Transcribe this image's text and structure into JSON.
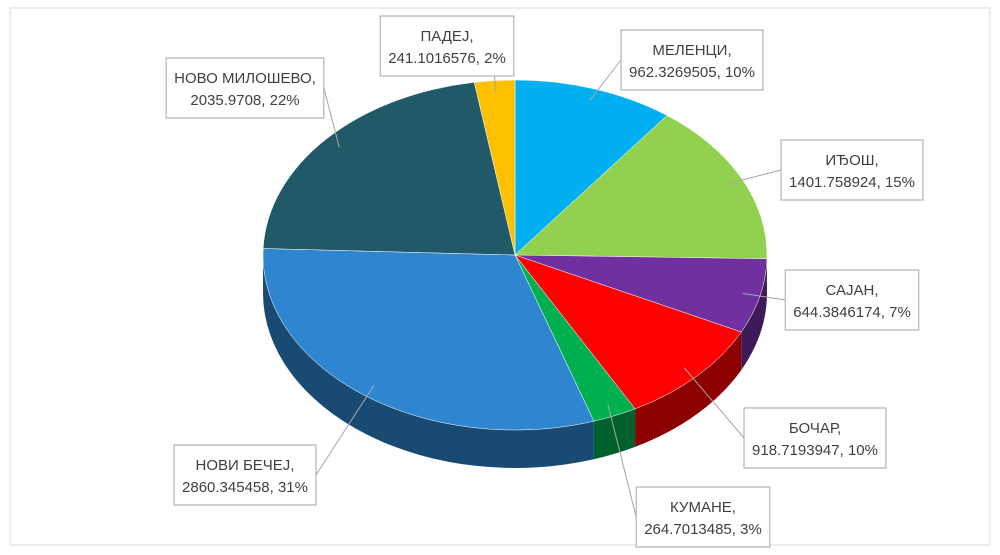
{
  "chart_data": {
    "type": "pie",
    "three_d": true,
    "categories": [
      "МЕЛЕНЦИ",
      "ИЂОШ",
      "САЈАН",
      "БОЧАР",
      "КУМАНЕ",
      "НОВИ БЕЧЕЈ",
      "НОВО МИЛОШЕВО",
      "ПАДЕЈ"
    ],
    "values": [
      962.3269505,
      1401.758924,
      644.3846174,
      918.7193947,
      264.7013485,
      2860.345458,
      2035.9708,
      241.1016576
    ],
    "value_labels": [
      "962.3269505, 10%",
      "1401.758924, 15%",
      "644.3846174, 7%",
      "918.7193947, 10%",
      "264.7013485, 3%",
      "2860.345458, 31%",
      "2035.9708, 22%",
      "241.1016576, 2%"
    ],
    "label_separator": ",",
    "colors": [
      "#00b0f0",
      "#92d050",
      "#7030a0",
      "#ff0000",
      "#00b050",
      "#2e86d1",
      "#215968",
      "#ffc000"
    ]
  }
}
